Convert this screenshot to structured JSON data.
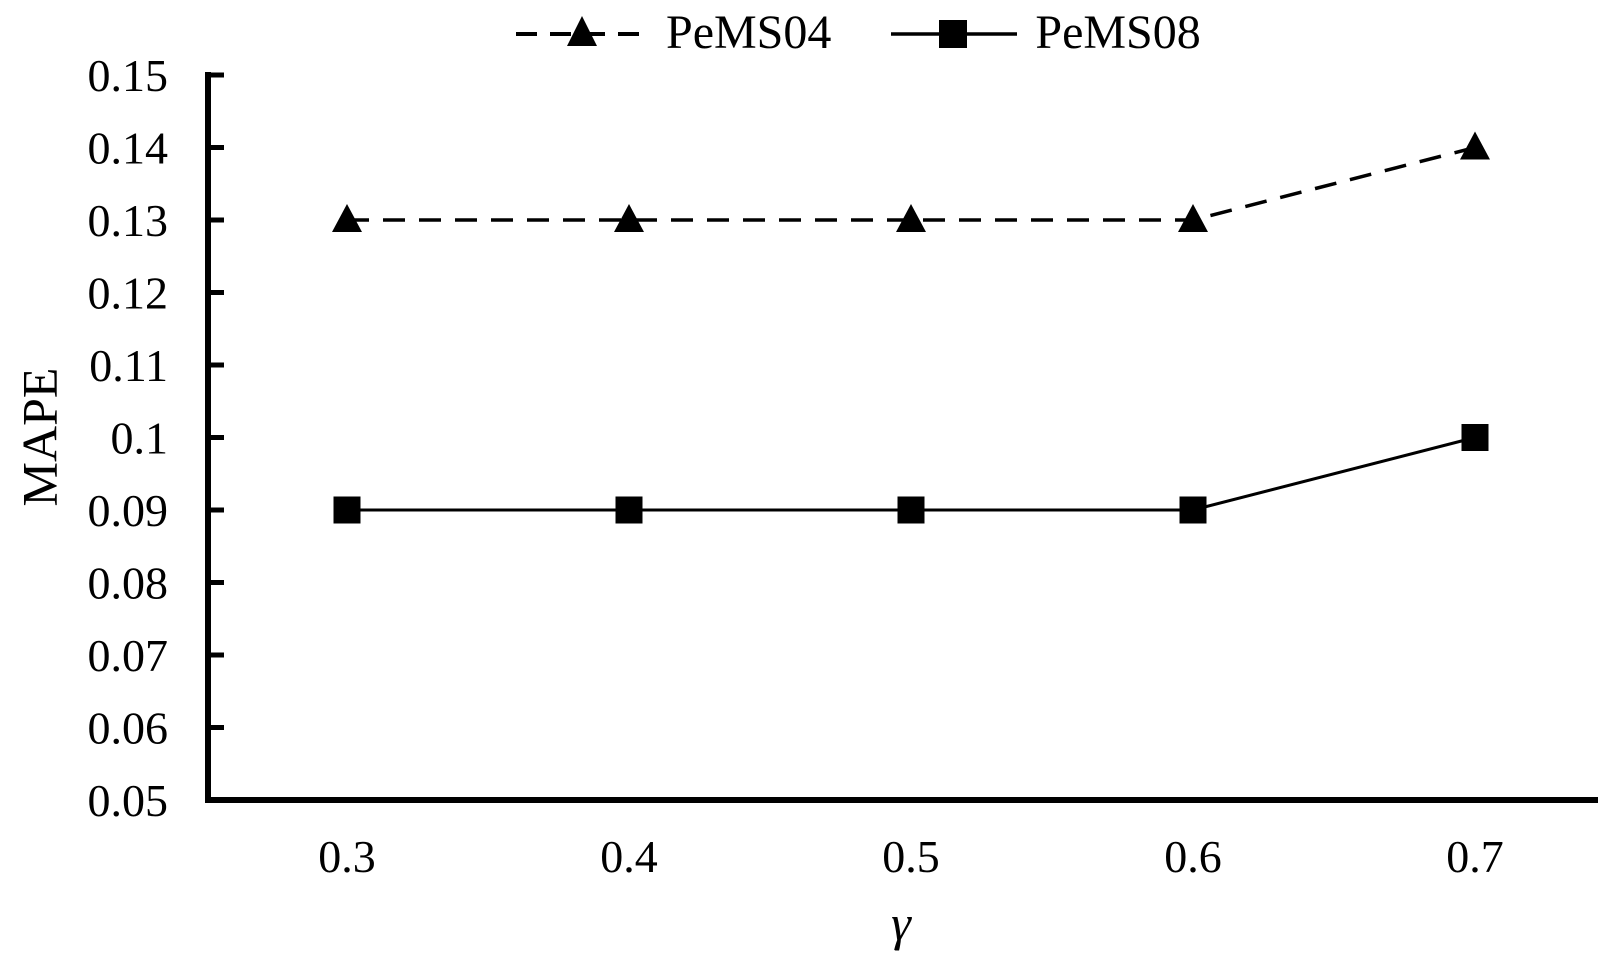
{
  "chart_data": {
    "type": "line",
    "title": "",
    "xlabel": "γ",
    "ylabel": "MAPE",
    "x_categories": [
      "0.3",
      "0.4",
      "0.5",
      "0.6",
      "0.7"
    ],
    "series": [
      {
        "name": "PeMS04",
        "marker": "triangle",
        "line_style": "dashed",
        "values": [
          0.13,
          0.13,
          0.13,
          0.13,
          0.14
        ]
      },
      {
        "name": "PeMS08",
        "marker": "square",
        "line_style": "solid",
        "values": [
          0.09,
          0.09,
          0.09,
          0.09,
          0.1
        ]
      }
    ],
    "ylim": [
      0.05,
      0.15
    ],
    "ytick_step": 0.01,
    "ytick_labels": [
      "0.15",
      "0.14",
      "0.13",
      "0.12",
      "0.11",
      "0.1",
      "0.09",
      "0.08",
      "0.07",
      "0.06",
      "0.05"
    ],
    "grid": false,
    "legend_position": "top-center",
    "ink_color": "#000000",
    "background_color": "#ffffff"
  }
}
